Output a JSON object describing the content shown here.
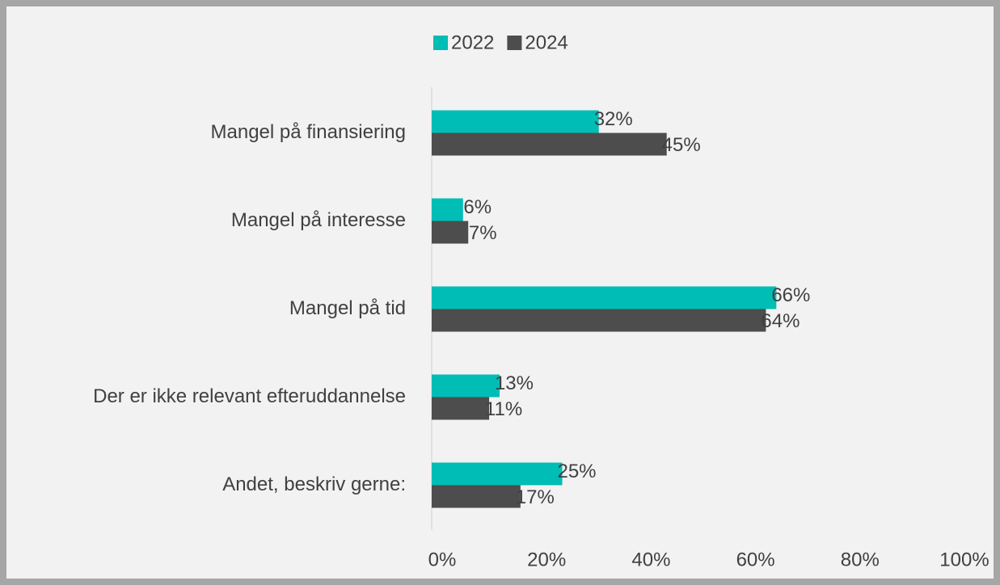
{
  "chart_data": {
    "type": "hbar",
    "categories": [
      "Mangel på finansiering",
      "Mangel på interesse",
      "Mangel på tid",
      "Der er ikke relevant efteruddannelse",
      "Andet, beskriv gerne:"
    ],
    "series": [
      {
        "name": "2022",
        "color": "#00bdb5",
        "values": [
          32,
          6,
          66,
          13,
          25
        ],
        "value_labels": [
          "32%",
          "6%",
          "66%",
          "13%",
          "25%"
        ]
      },
      {
        "name": "2024",
        "color": "#4d4d4d",
        "values": [
          45,
          7,
          64,
          11,
          17
        ],
        "value_labels": [
          "45%",
          "7%",
          "64%",
          "11%",
          "17%"
        ]
      }
    ],
    "xlim": [
      0,
      100
    ],
    "xticks": [
      {
        "value": 0,
        "label": "0%"
      },
      {
        "value": 20,
        "label": "20%"
      },
      {
        "value": 40,
        "label": "40%"
      },
      {
        "value": 60,
        "label": "60%"
      },
      {
        "value": 80,
        "label": "80%"
      },
      {
        "value": 100,
        "label": "100%"
      }
    ],
    "legend": "top"
  }
}
